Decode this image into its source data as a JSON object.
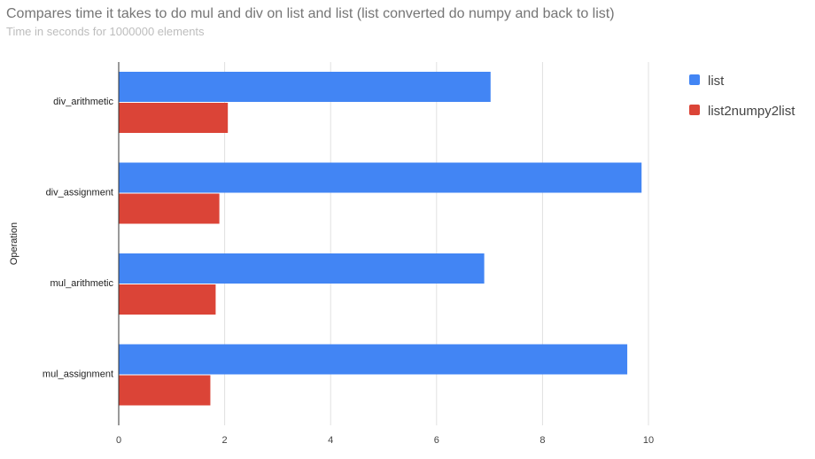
{
  "chart_data": {
    "type": "bar",
    "orientation": "horizontal",
    "title": "Compares time it takes to do mul and div on list and list (list converted do numpy and back to list)",
    "subtitle": "Time in seconds for 1000000 elements",
    "ylabel": "Operation",
    "xlabel": "",
    "categories": [
      "div_arithmetic",
      "div_assignment",
      "mul_arithmetic",
      "mul_assignment"
    ],
    "series": [
      {
        "name": "list",
        "color": "#4285f4",
        "values": [
          7.02,
          9.87,
          6.9,
          9.6
        ]
      },
      {
        "name": "list2numpy2list",
        "color": "#db4437",
        "values": [
          2.06,
          1.9,
          1.83,
          1.73
        ]
      }
    ],
    "xlim": [
      0,
      10
    ],
    "xticks": [
      "0",
      "2",
      "4",
      "6",
      "8",
      "10"
    ],
    "grid": true,
    "legend_position": "right"
  }
}
